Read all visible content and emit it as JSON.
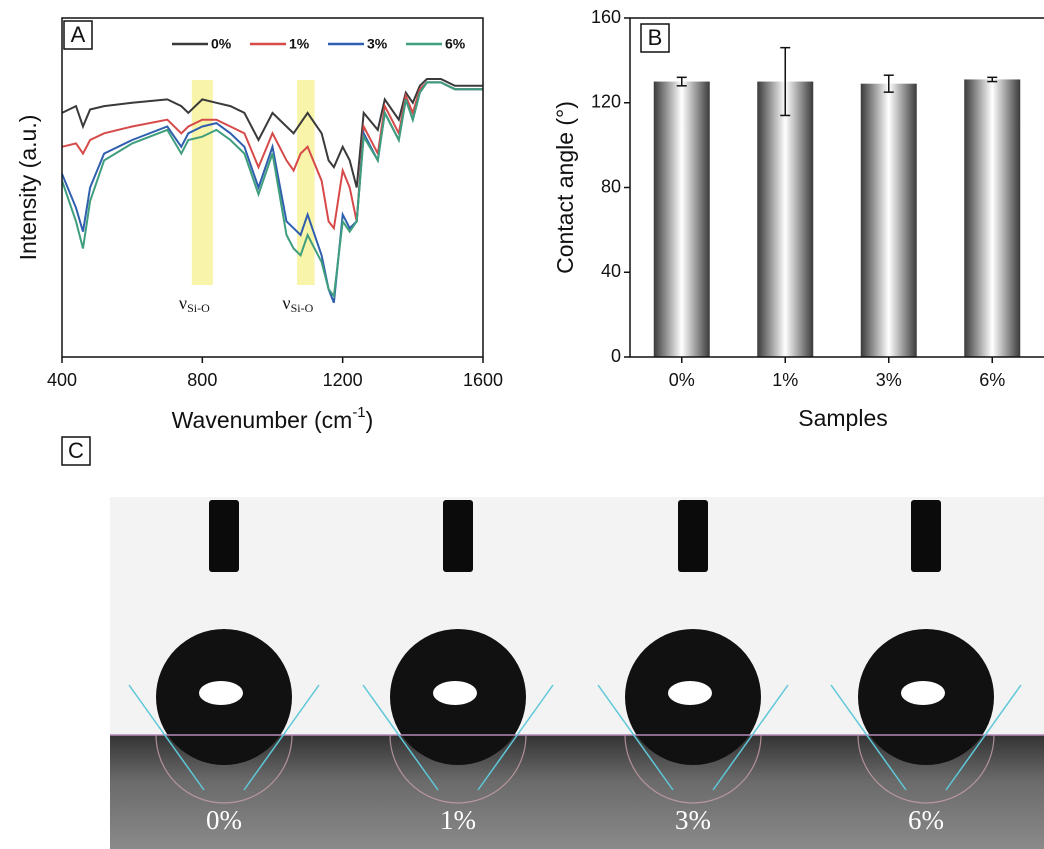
{
  "chart_data": [
    {
      "type": "line",
      "panel_label": "A",
      "xlabel": "Wavenumber (cm",
      "xlabel_sup": "-1",
      "xlabel_end": ")",
      "ylabel": "Intensity (a.u.)",
      "xlim": [
        400,
        1600
      ],
      "xticks": [
        400,
        800,
        1200,
        1600
      ],
      "ylim": [
        0,
        100
      ],
      "x": [
        400,
        440,
        460,
        480,
        520,
        600,
        700,
        740,
        760,
        800,
        840,
        880,
        920,
        960,
        1000,
        1040,
        1060,
        1080,
        1100,
        1140,
        1160,
        1175,
        1200,
        1220,
        1240,
        1260,
        1300,
        1320,
        1360,
        1380,
        1400,
        1420,
        1440,
        1480,
        1520,
        1600
      ],
      "series": [
        {
          "name": "0%",
          "color": "#3a3a3a",
          "values": [
            72,
            74,
            68,
            73,
            74,
            75,
            76,
            74,
            72,
            76,
            75,
            74,
            72,
            64,
            72,
            68,
            66,
            69,
            72,
            66,
            58,
            56,
            62,
            58,
            50,
            72,
            67,
            76,
            70,
            78,
            75,
            80,
            82,
            82,
            80,
            80
          ]
        },
        {
          "name": "1%",
          "color": "#d64a4a",
          "values": [
            62,
            63,
            60,
            64,
            66,
            68,
            70,
            66,
            68,
            70,
            70,
            68,
            66,
            56,
            66,
            58,
            55,
            60,
            62,
            52,
            40,
            38,
            55,
            50,
            40,
            68,
            60,
            74,
            66,
            77,
            72,
            79,
            81,
            81,
            79,
            79
          ]
        },
        {
          "name": "3%",
          "color": "#2f5fae",
          "values": [
            54,
            44,
            37,
            50,
            60,
            64,
            68,
            62,
            66,
            68,
            69,
            66,
            62,
            50,
            62,
            40,
            38,
            36,
            42,
            30,
            20,
            16,
            42,
            38,
            40,
            66,
            58,
            72,
            64,
            76,
            70,
            78,
            81,
            81,
            79,
            79
          ]
        },
        {
          "name": "6%",
          "color": "#3f9e7c",
          "values": [
            52,
            40,
            32,
            46,
            58,
            63,
            67,
            60,
            64,
            65,
            67,
            64,
            60,
            48,
            60,
            36,
            32,
            30,
            36,
            28,
            20,
            18,
            40,
            37,
            40,
            65,
            58,
            72,
            64,
            76,
            70,
            78,
            81,
            81,
            79,
            79
          ]
        }
      ],
      "highlights": [
        {
          "range": [
            770,
            830
          ],
          "label": "ν",
          "sub": "Si-O"
        },
        {
          "range": [
            1070,
            1120
          ],
          "label": "ν",
          "sub": "Si-O"
        }
      ],
      "highlight_color": "#f7f3a0",
      "legend": "top"
    },
    {
      "type": "bar",
      "panel_label": "B",
      "xlabel": "Samples",
      "ylabel": "Contact angle (°)",
      "categories": [
        "0%",
        "1%",
        "3%",
        "6%"
      ],
      "values": [
        130,
        130,
        129,
        131
      ],
      "errors": [
        2,
        16,
        4,
        1
      ],
      "ylim": [
        0,
        160
      ],
      "yticks": [
        0,
        40,
        80,
        120,
        160
      ]
    }
  ],
  "panel_c": {
    "panel_label": "C",
    "labels": [
      "0%",
      "1%",
      "3%",
      "6%"
    ]
  }
}
